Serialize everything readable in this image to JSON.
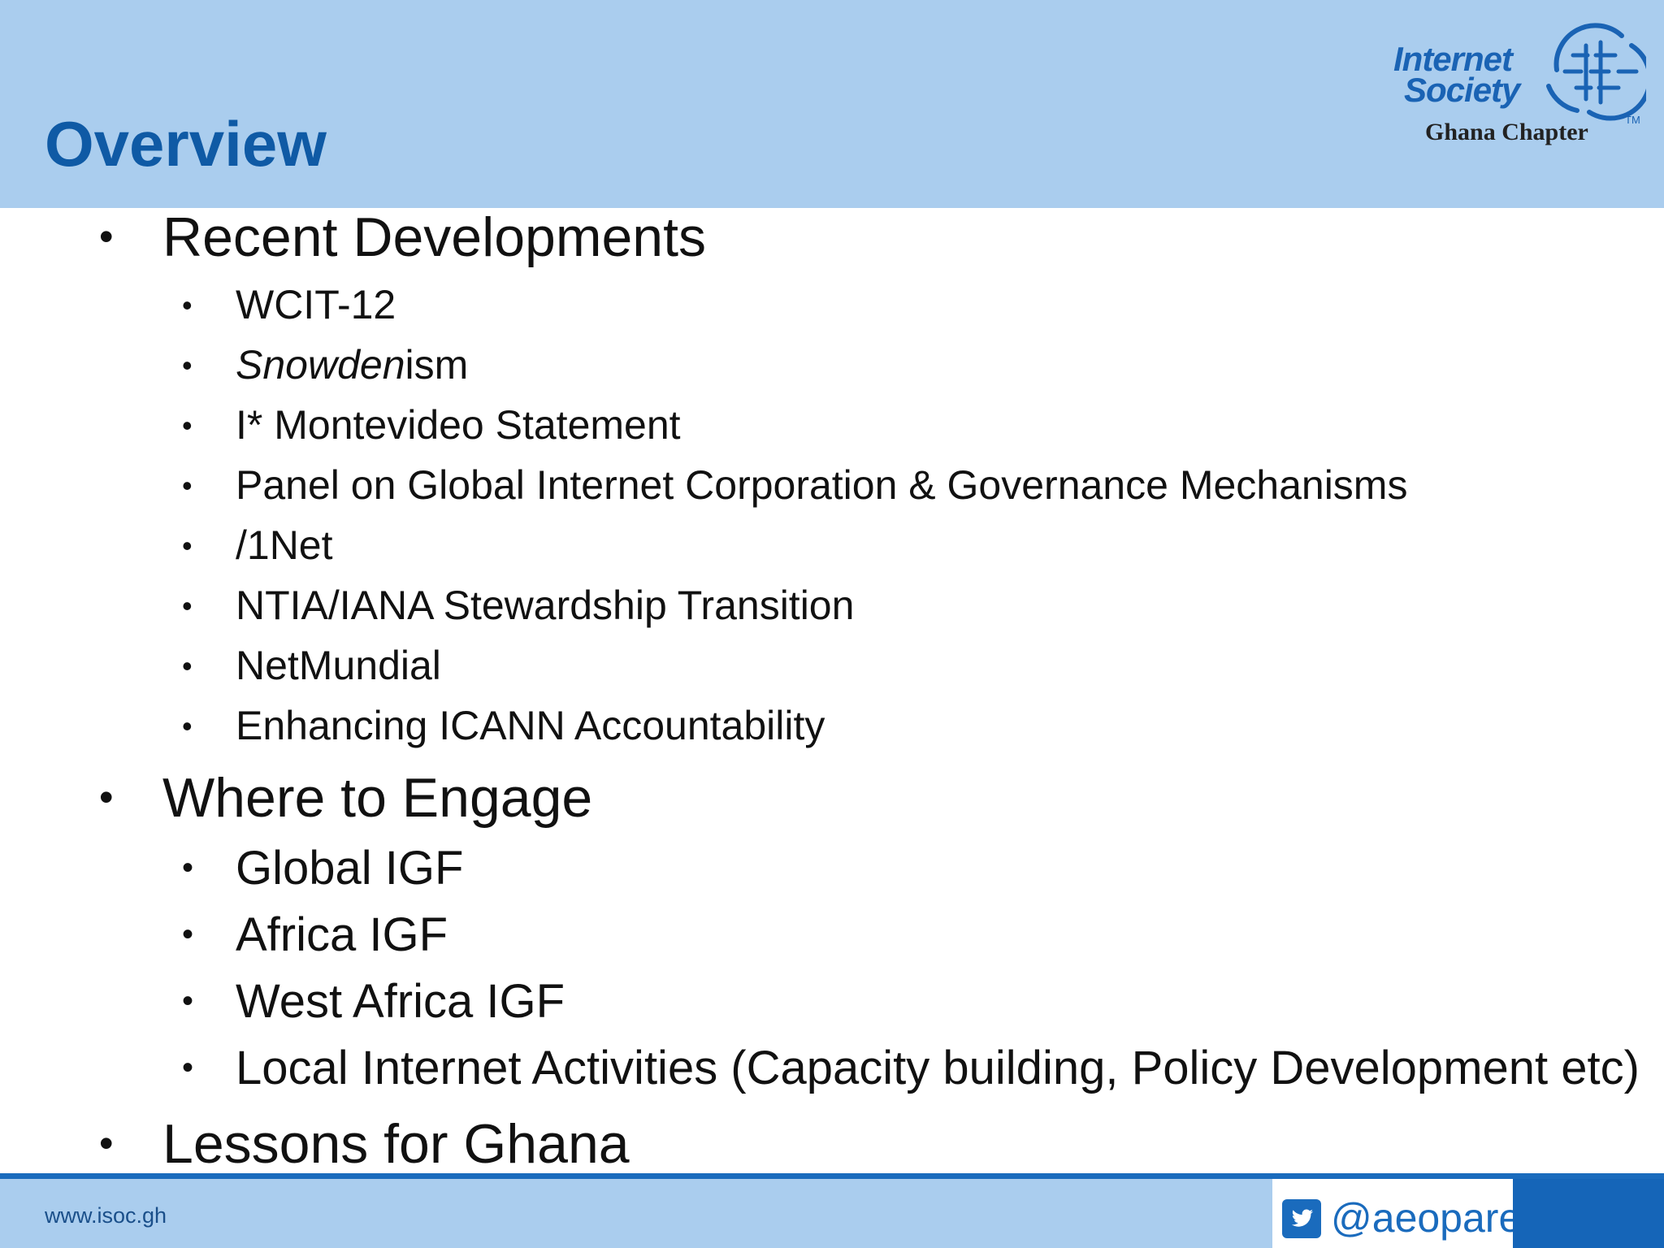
{
  "slide": {
    "title": "Overview",
    "logo": {
      "line1": "Internet",
      "line2": "Society",
      "subtitle": "Ghana Chapter",
      "tm": "TM"
    },
    "bullet_char": "•",
    "sections": [
      {
        "label": "Recent Developments",
        "items": [
          {
            "label": "WCIT-12"
          },
          {
            "italic": "Snowden",
            "rest": "ism"
          },
          {
            "label": "I* Montevideo Statement"
          },
          {
            "label": "Panel on Global Internet Corporation & Governance Mechanisms"
          },
          {
            "label": "/1Net"
          },
          {
            "label": "NTIA/IANA Stewardship Transition"
          },
          {
            "label": "NetMundial"
          },
          {
            "label": "Enhancing ICANN Accountability"
          }
        ]
      },
      {
        "label": "Where to Engage",
        "items": [
          {
            "label": "Global IGF"
          },
          {
            "label": "Africa IGF"
          },
          {
            "label": "West Africa IGF"
          },
          {
            "label": "Local Internet Activities (Capacity building, Policy Development etc)"
          }
        ]
      },
      {
        "label": "Lessons for Ghana",
        "items": []
      }
    ],
    "footer": {
      "url": "www.isoc.gh",
      "twitter_handle": "@aeopare"
    },
    "colors": {
      "header_bg": "#aacdee",
      "title": "#0f5aa5",
      "accent": "#1a6bbd"
    }
  }
}
